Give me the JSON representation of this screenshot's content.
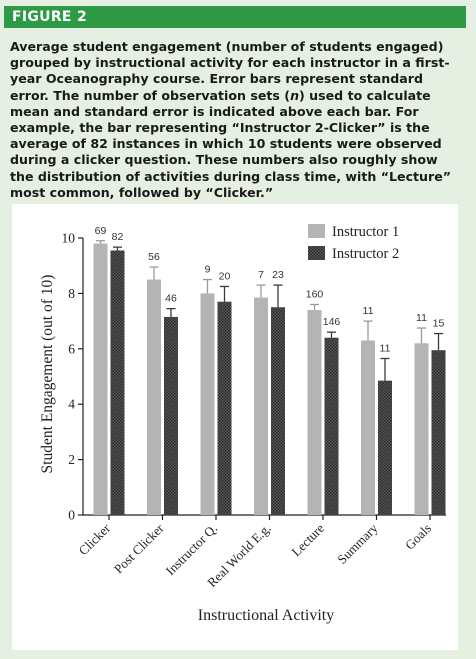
{
  "figure": {
    "label": "FIGURE 2",
    "caption_parts": [
      "Average student engagement (number of students engaged) grouped by instructional activity for each instructor in a first-year Oceanography course. Error bars represent standard error. The number of observation sets (",
      "n",
      ") used to calculate mean and standard error is indicated above each bar. For example, the bar representing “Instructor 2-Clicker” is the average of 82 instances in which 10 students were observed during a clicker question. These numbers also roughly show the distribution of activities during class time, with “Lecture” most common, followed by “Clicker.”"
    ]
  },
  "colors": {
    "header_bg": "#2f9a46",
    "page_bg": "#e6f0e2",
    "instructor1": "#b4b4b4",
    "instructor2": "#4a4a4a"
  },
  "chart_data": {
    "type": "bar",
    "xlabel": "Instructional Activity",
    "ylabel": "Student Engagement (out of 10)",
    "ylim": [
      0,
      10
    ],
    "yticks": [
      0,
      2,
      4,
      6,
      8,
      10
    ],
    "legend_position": "top-right",
    "categories": [
      "Clicker",
      "Post Clicker",
      "Instructor Q.",
      "Real World E.g.",
      "Lecture",
      "Summary",
      "Goals"
    ],
    "series": [
      {
        "name": "Instructor 1",
        "values": [
          9.8,
          8.5,
          8.0,
          7.85,
          7.4,
          6.3,
          6.2
        ],
        "errors": [
          0.1,
          0.45,
          0.5,
          0.45,
          0.2,
          0.7,
          0.55
        ],
        "n": [
          "69",
          "56",
          "9",
          "7",
          "160",
          "11",
          "11"
        ]
      },
      {
        "name": "Instructor 2",
        "values": [
          9.55,
          7.15,
          7.7,
          7.5,
          6.4,
          4.85,
          5.95
        ],
        "errors": [
          0.12,
          0.3,
          0.55,
          0.8,
          0.2,
          0.8,
          0.6
        ],
        "n": [
          "82",
          "46",
          "20",
          "23",
          "146",
          "11",
          "15"
        ]
      }
    ]
  }
}
